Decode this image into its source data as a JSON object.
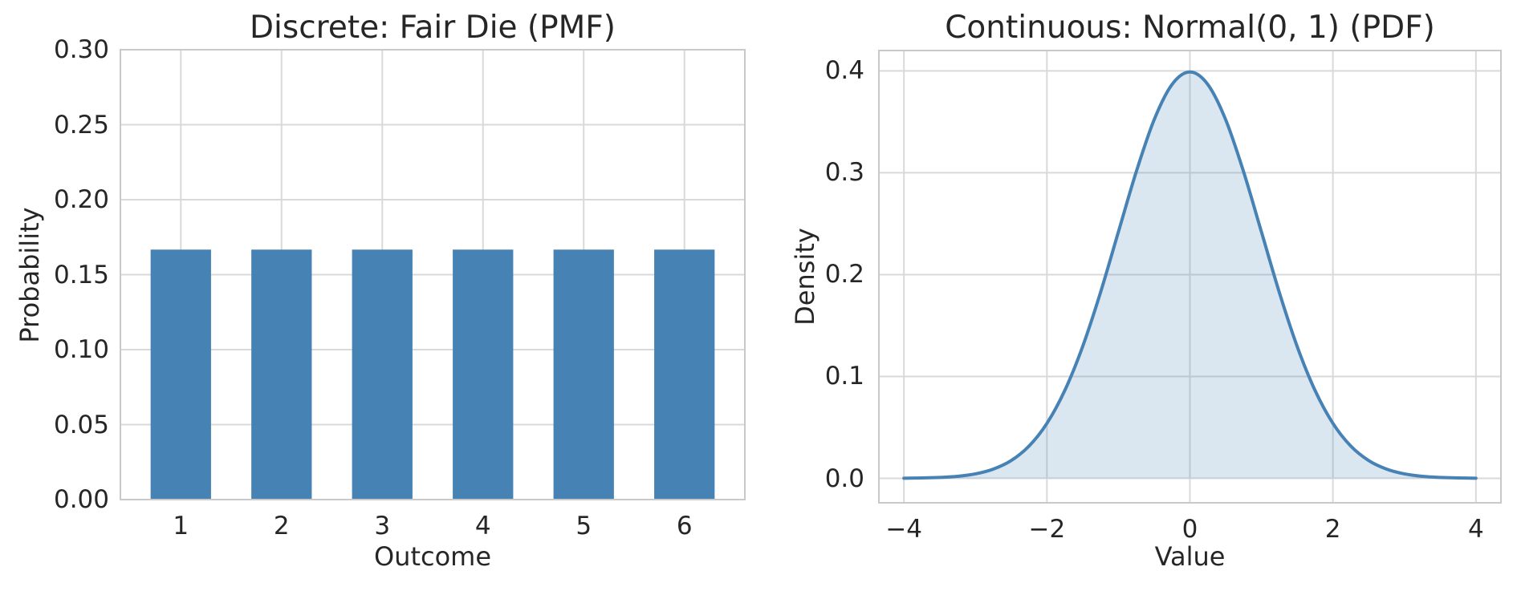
{
  "figure": {
    "background_color": "#ffffff",
    "text_color": "#262626",
    "grid_color": "#d9d9d9",
    "spine_color": "#c9c9c9"
  },
  "chart_data": [
    {
      "type": "bar",
      "title": "Discrete: Fair Die (PMF)",
      "xlabel": "Outcome",
      "ylabel": "Probability",
      "categories": [
        "1",
        "2",
        "3",
        "4",
        "5",
        "6"
      ],
      "positions": [
        1,
        2,
        3,
        4,
        5,
        6
      ],
      "values": [
        0.1667,
        0.1667,
        0.1667,
        0.1667,
        0.1667,
        0.1667
      ],
      "bar_color": "#4682b4",
      "bar_width": 0.6,
      "xlim": [
        0.4,
        6.6
      ],
      "ylim": [
        0.0,
        0.3
      ],
      "xticks": [
        1,
        2,
        3,
        4,
        5,
        6
      ],
      "yticks": [
        0.0,
        0.05,
        0.1,
        0.15,
        0.2,
        0.25,
        0.3
      ],
      "ytick_labels": [
        "0.00",
        "0.05",
        "0.10",
        "0.15",
        "0.20",
        "0.25",
        "0.30"
      ],
      "grid": true,
      "legend": "none"
    },
    {
      "type": "area",
      "title": "Continuous: Normal(0, 1) (PDF)",
      "xlabel": "Value",
      "ylabel": "Density",
      "distribution": {
        "name": "normal",
        "mean": 0,
        "std": 1,
        "x_range": [
          -4,
          4
        ]
      },
      "x": [
        -4,
        -3.75,
        -3.5,
        -3.25,
        -3,
        -2.75,
        -2.5,
        -2.25,
        -2,
        -1.75,
        -1.5,
        -1.25,
        -1,
        -0.75,
        -0.5,
        -0.25,
        0,
        0.25,
        0.5,
        0.75,
        1,
        1.25,
        1.5,
        1.75,
        2,
        2.25,
        2.5,
        2.75,
        3,
        3.25,
        3.5,
        3.75,
        4
      ],
      "y": [
        0.0001,
        0.0004,
        0.0009,
        0.002,
        0.0044,
        0.0091,
        0.0175,
        0.0317,
        0.054,
        0.0863,
        0.1295,
        0.1826,
        0.242,
        0.3011,
        0.3521,
        0.3867,
        0.3989,
        0.3867,
        0.3521,
        0.3011,
        0.242,
        0.1826,
        0.1295,
        0.0863,
        0.054,
        0.0317,
        0.0175,
        0.0091,
        0.0044,
        0.002,
        0.0009,
        0.0004,
        0.0001
      ],
      "line_color": "#4682b4",
      "line_width": 4,
      "fill_color": "#4682b4",
      "fill_alpha": 0.2,
      "xlim": [
        -4.35,
        4.35
      ],
      "ylim": [
        -0.024,
        0.42
      ],
      "xticks": [
        -4,
        -2,
        0,
        2,
        4
      ],
      "xtick_labels": [
        "−4",
        "−2",
        "0",
        "2",
        "4"
      ],
      "yticks": [
        0.0,
        0.1,
        0.2,
        0.3,
        0.4
      ],
      "ytick_labels": [
        "0.0",
        "0.1",
        "0.2",
        "0.3",
        "0.4"
      ],
      "grid": true,
      "legend": "none"
    }
  ]
}
